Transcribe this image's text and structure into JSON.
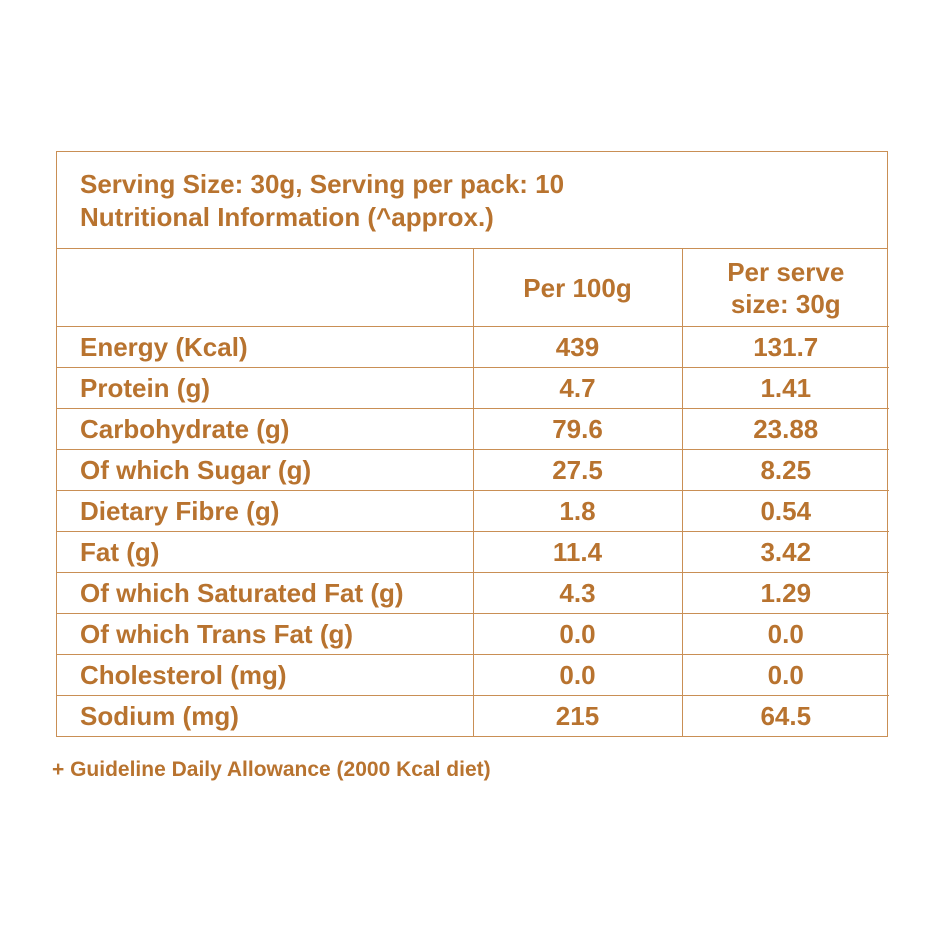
{
  "header": {
    "serving_line": "Serving Size: 30g, Serving per pack: 10",
    "info_line": "Nutritional Information (^approx.)"
  },
  "columns": {
    "nutrient": "",
    "per_100g": "Per 100g",
    "per_serve_line1": "Per serve",
    "per_serve_line2": "size: 30g"
  },
  "rows": [
    {
      "nutrient": "Energy (Kcal)",
      "per_100g": "439",
      "per_serve": "131.7"
    },
    {
      "nutrient": "Protein (g)",
      "per_100g": "4.7",
      "per_serve": "1.41"
    },
    {
      "nutrient": "Carbohydrate (g)",
      "per_100g": "79.6",
      "per_serve": "23.88"
    },
    {
      "nutrient": "Of which Sugar (g)",
      "per_100g": "27.5",
      "per_serve": "8.25"
    },
    {
      "nutrient": "Dietary Fibre (g)",
      "per_100g": "1.8",
      "per_serve": "0.54"
    },
    {
      "nutrient": "Fat (g)",
      "per_100g": "11.4",
      "per_serve": "3.42"
    },
    {
      "nutrient": "Of which Saturated Fat (g)",
      "per_100g": "4.3",
      "per_serve": "1.29"
    },
    {
      "nutrient": "Of which Trans Fat (g)",
      "per_100g": "0.0",
      "per_serve": "0.0"
    },
    {
      "nutrient": "Cholesterol (mg)",
      "per_100g": "0.0",
      "per_serve": "0.0"
    },
    {
      "nutrient": "Sodium (mg)",
      "per_100g": "215",
      "per_serve": "64.5"
    }
  ],
  "footnote": "+ Guideline Daily Allowance (2000 Kcal diet)",
  "colors": {
    "text": "#b8732f",
    "border": "#c98f55",
    "background": "#ffffff"
  }
}
